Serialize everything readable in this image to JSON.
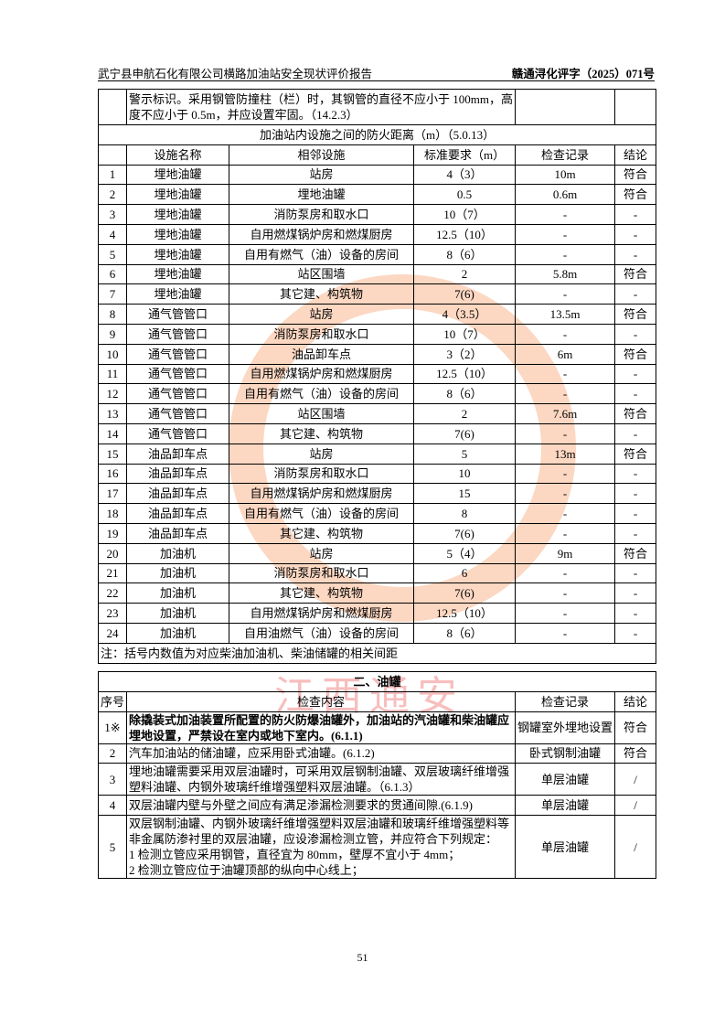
{
  "header": {
    "left": "武宁县申航石化有限公司横路加油站安全现状评价报告",
    "right": "赣通浔化评字（2025）071号"
  },
  "top_row": {
    "text": "警示标识。采用钢管防撞柱（栏）时，其钢管的直径不应小于 100mm，高度不应小于 0.5m，并应设置牢固。（14.2.3）"
  },
  "fire_distance": {
    "title": "加油站内设施之间的防火距离（m）（5.0.13）",
    "columns": [
      "",
      "设施名称",
      "相邻设施",
      "标准要求（m）",
      "检查记录",
      "结论"
    ],
    "rows": [
      [
        "1",
        "埋地油罐",
        "站房",
        "4（3）",
        "10m",
        "符合"
      ],
      [
        "2",
        "埋地油罐",
        "埋地油罐",
        "0.5",
        "0.6m",
        "符合"
      ],
      [
        "3",
        "埋地油罐",
        "消防泵房和取水口",
        "10（7）",
        "-",
        "-"
      ],
      [
        "4",
        "埋地油罐",
        "自用燃煤锅炉房和燃煤厨房",
        "12.5（10）",
        "-",
        "-"
      ],
      [
        "5",
        "埋地油罐",
        "自用有燃气（油）设备的房间",
        "8（6）",
        "-",
        "-"
      ],
      [
        "6",
        "埋地油罐",
        "站区围墙",
        "2",
        "5.8m",
        "符合"
      ],
      [
        "7",
        "埋地油罐",
        "其它建、构筑物",
        "7(6)",
        "-",
        "-"
      ],
      [
        "8",
        "通气管管口",
        "站房",
        "4（3.5）",
        "13.5m",
        "符合"
      ],
      [
        "9",
        "通气管管口",
        "消防泵房和取水口",
        "10（7）",
        "-",
        "-"
      ],
      [
        "10",
        "通气管管口",
        "油品卸车点",
        "3（2）",
        "6m",
        "符合"
      ],
      [
        "11",
        "通气管管口",
        "自用燃煤锅炉房和燃煤厨房",
        "12.5（10）",
        "-",
        "-"
      ],
      [
        "12",
        "通气管管口",
        "自用有燃气（油）设备的房间",
        "8（6）",
        "-",
        "-"
      ],
      [
        "13",
        "通气管管口",
        "站区围墙",
        "2",
        "7.6m",
        "符合"
      ],
      [
        "14",
        "通气管管口",
        "其它建、构筑物",
        "7(6)",
        "-",
        "-"
      ],
      [
        "15",
        "油品卸车点",
        "站房",
        "5",
        "13m",
        "符合"
      ],
      [
        "16",
        "油品卸车点",
        "消防泵房和取水口",
        "10",
        "-",
        "-"
      ],
      [
        "17",
        "油品卸车点",
        "自用燃煤锅炉房和燃煤厨房",
        "15",
        "-",
        "-"
      ],
      [
        "18",
        "油品卸车点",
        "自用有燃气（油）设备的房间",
        "8",
        "-",
        "-"
      ],
      [
        "19",
        "油品卸车点",
        "其它建、构筑物",
        "7(6)",
        "-",
        "-"
      ],
      [
        "20",
        "加油机",
        "站房",
        "5（4）",
        "9m",
        "符合"
      ],
      [
        "21",
        "加油机",
        "消防泵房和取水口",
        "6",
        "-",
        "-"
      ],
      [
        "22",
        "加油机",
        "其它建、构筑物",
        "7(6)",
        "-",
        "-"
      ],
      [
        "23",
        "加油机",
        "自用燃煤锅炉房和燃煤厨房",
        "12.5（10）",
        "-",
        "-"
      ],
      [
        "24",
        "加油机",
        "自用油燃气（油）设备的房间",
        "8（6）",
        "-",
        "-"
      ]
    ],
    "note": "注：括号内数值为对应柴油加油机、柴油储罐的相关间距"
  },
  "tanks": {
    "title": "二、油罐",
    "columns": [
      "序号",
      "检查内容",
      "检查记录",
      "结论"
    ],
    "rows": [
      {
        "no": "1※",
        "content": "除撬装式加油装置所配置的防火防爆油罐外，加油站的汽油罐和柴油罐应埋地设置，严禁设在室内或地下室内。(6.1.1)",
        "record": "钢罐室外埋地设置",
        "result": "符合"
      },
      {
        "no": "2",
        "content": "汽车加油站的储油罐，应采用卧式油罐。(6.1.2)",
        "record": "卧式钢制油罐",
        "result": "符合"
      },
      {
        "no": "3",
        "content": "埋地油罐需要采用双层油罐时，可采用双层钢制油罐、双层玻璃纤维增强塑料油罐、内钢外玻璃纤维增强塑料双层油罐。（6.1.3）",
        "record": "单层油罐",
        "result": "/"
      },
      {
        "no": "4",
        "content": "双层油罐内壁与外壁之间应有满足渗漏检测要求的贯通间隙.(6.1.9)",
        "record": "单层油罐",
        "result": "/"
      },
      {
        "no": "5",
        "content_lines": [
          " 双层钢制油罐、内钢外玻璃纤维增强塑料双层油罐和玻璃纤维增强塑料等非金属防渗衬里的双层油罐，应设渗漏检测立管，并应符合下列规定：",
          "1  检测立管应采用钢管，直径宜为 80mm，壁厚不宜小于 4mm；",
          "2  检测立管应位于油罐顶部的纵向中心线上；"
        ],
        "record": "单层油罐",
        "result": "/"
      }
    ]
  },
  "watermark": {
    "text": "江西通安",
    "accent": "#f08040"
  },
  "page_number": "51"
}
